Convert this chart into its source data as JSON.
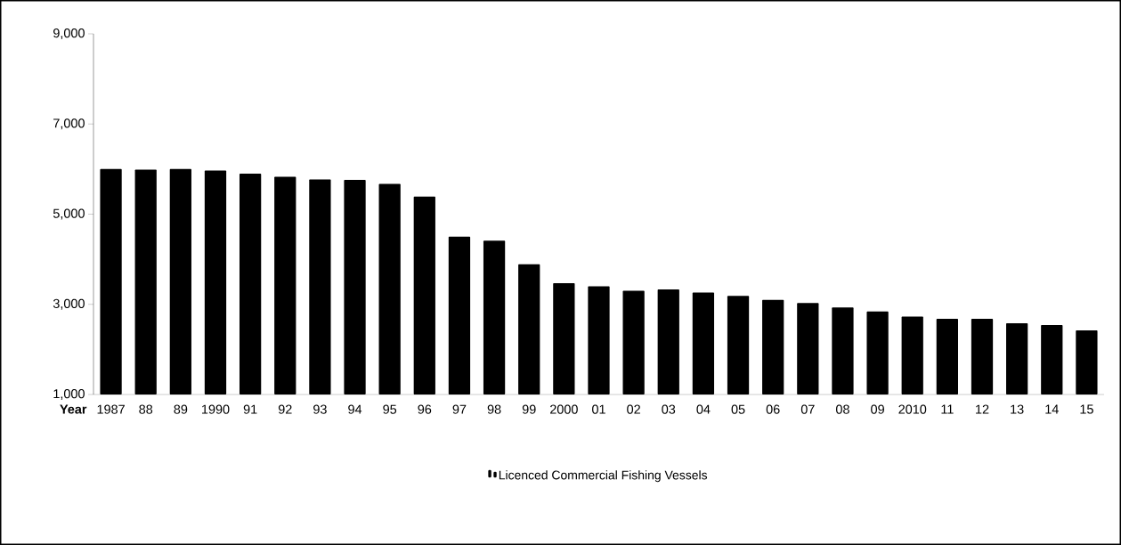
{
  "chart_data": {
    "type": "bar",
    "xlabel": "Year",
    "categories": [
      "1987",
      "88",
      "89",
      "1990",
      "91",
      "92",
      "93",
      "94",
      "95",
      "96",
      "97",
      "98",
      "99",
      "2000",
      "01",
      "02",
      "03",
      "04",
      "05",
      "06",
      "07",
      "08",
      "09",
      "2010",
      "11",
      "12",
      "13",
      "14",
      "15"
    ],
    "series": [
      {
        "name": "Licenced Commercial Fishing Vessels",
        "color": "#000000",
        "values": [
          6000,
          5990,
          6000,
          5970,
          5900,
          5830,
          5770,
          5760,
          5670,
          5390,
          4500,
          4410,
          3890,
          3470,
          3400,
          3300,
          3330,
          3260,
          3190,
          3100,
          3030,
          2930,
          2840,
          2730,
          2680,
          2680,
          2580,
          2540,
          2420
        ]
      }
    ],
    "ylim": [
      1000,
      9000
    ],
    "yticks": [
      {
        "value": 1000,
        "label": "1,000"
      },
      {
        "value": 3000,
        "label": "3,000"
      },
      {
        "value": 5000,
        "label": "5,000"
      },
      {
        "value": 7000,
        "label": "7,000"
      },
      {
        "value": 9000,
        "label": "9,000"
      }
    ],
    "legend": "bottom",
    "grid": false
  }
}
